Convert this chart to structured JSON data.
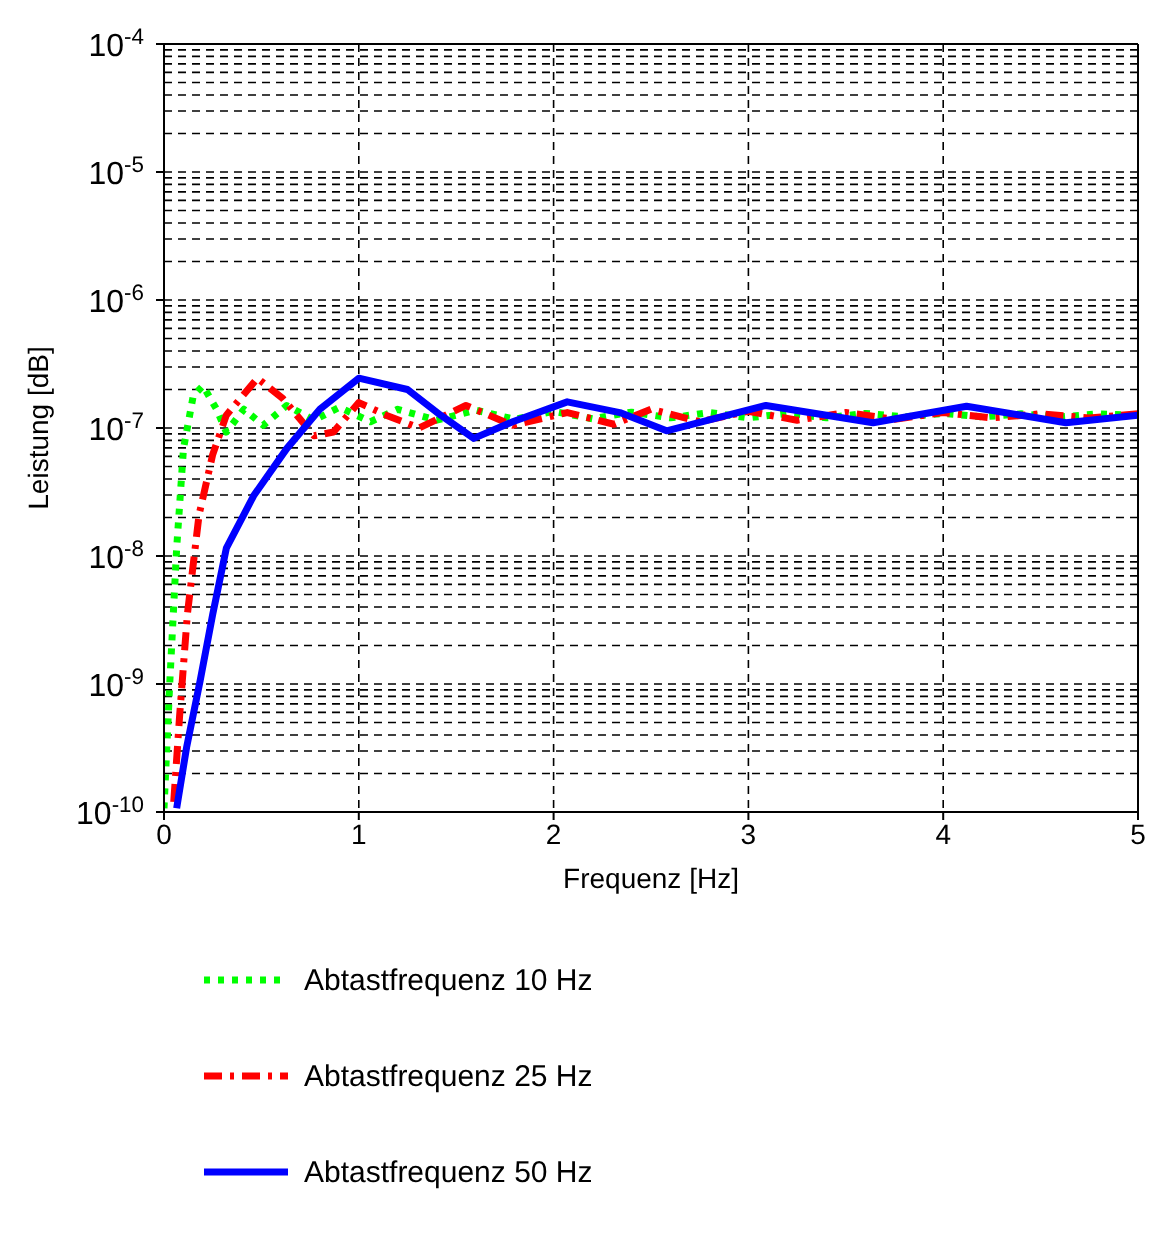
{
  "chart_data": {
    "type": "line",
    "xlabel": "Frequenz [Hz]",
    "ylabel": "Leistung [dB]",
    "log": "y",
    "grid": true,
    "legend": "bottom",
    "marker": "none",
    "xlim": [
      0,
      5
    ],
    "xticks": [
      0,
      1,
      2,
      3,
      4,
      5
    ],
    "ylim": [
      1e-10,
      0.0001
    ],
    "yticks": [
      {
        "value": 1e-10,
        "label": "10$^{-10}$"
      },
      {
        "value": 1e-09,
        "label": "10$^{-9}$"
      },
      {
        "value": 1e-08,
        "label": "10$^{-8}$"
      },
      {
        "value": 1e-07,
        "label": "10$^{-7}$"
      },
      {
        "value": 1e-06,
        "label": "10$^{-6}$"
      },
      {
        "value": 1e-05,
        "label": "10$^{-5}$"
      },
      {
        "value": 0.0001,
        "label": "10$^{-4}$"
      }
    ],
    "series": [
      {
        "name": "Abtastfrequenz 10 Hz",
        "color": "#00ff00",
        "line_style": "dotted",
        "x": [
          0.0,
          0.03,
          0.065,
          0.1,
          0.15,
          0.2,
          0.27,
          0.32,
          0.41,
          0.51,
          0.63,
          0.77,
          0.9,
          1.06,
          1.2,
          1.4,
          1.6,
          1.8,
          2.0,
          2.2,
          2.4,
          2.6,
          2.8,
          3.0,
          3.2,
          3.4,
          3.6,
          3.8,
          4.0,
          4.2,
          4.4,
          4.6,
          4.8,
          5.0
        ],
        "values": [
          1.07e-10,
          1.05e-09,
          1.15e-08,
          6.9e-08,
          1.78e-07,
          2.14e-07,
          1.4e-07,
          9.3e-08,
          1.4e-07,
          1.05e-07,
          1.5e-07,
          1.15e-07,
          1.45e-07,
          1.12e-07,
          1.4e-07,
          1.15e-07,
          1.38e-07,
          1.17e-07,
          1.35e-07,
          1.18e-07,
          1.33e-07,
          1.2e-07,
          1.32e-07,
          1.2e-07,
          1.3e-07,
          1.2e-07,
          1.3e-07,
          1.22e-07,
          1.3e-07,
          1.22e-07,
          1.29e-07,
          1.22e-07,
          1.29e-07,
          1.25e-07
        ]
      },
      {
        "name": "Abtastfrequenz 25 Hz",
        "color": "#ff0000",
        "line_style": "dashed",
        "x": [
          0.05,
          0.08,
          0.12,
          0.18,
          0.25,
          0.32,
          0.48,
          0.61,
          0.77,
          0.87,
          1.0,
          1.14,
          1.31,
          1.55,
          1.79,
          2.07,
          2.31,
          2.5,
          2.75,
          3.0,
          3.25,
          3.5,
          3.75,
          4.0,
          4.25,
          4.5,
          4.75,
          5.0
        ],
        "values": [
          1.2e-10,
          5.6e-10,
          3.5e-09,
          2.1e-08,
          6.2e-08,
          1.26e-07,
          2.45e-07,
          1.7e-07,
          8.7e-08,
          9.3e-08,
          1.58e-07,
          1.26e-07,
          1e-07,
          1.5e-07,
          1.05e-07,
          1.32e-07,
          1.07e-07,
          1.4e-07,
          1.12e-07,
          1.35e-07,
          1.15e-07,
          1.32e-07,
          1.17e-07,
          1.32e-07,
          1.2e-07,
          1.29e-07,
          1.2e-07,
          1.29e-07
        ]
      },
      {
        "name": "Abtastfrequenz 50 Hz",
        "color": "#0000ff",
        "line_style": "solid",
        "x": [
          0.065,
          0.116,
          0.185,
          0.25,
          0.32,
          0.46,
          0.63,
          0.8,
          1.0,
          1.25,
          1.42,
          1.59,
          1.79,
          2.07,
          2.34,
          2.58,
          3.09,
          3.64,
          4.12,
          4.63,
          5.0
        ],
        "values": [
          1.07e-10,
          3.2e-10,
          1.05e-09,
          3.5e-09,
          1.15e-08,
          2.95e-08,
          6.9e-08,
          1.4e-07,
          2.45e-07,
          2e-07,
          1.26e-07,
          8.3e-08,
          1.12e-07,
          1.6e-07,
          1.32e-07,
          9.5e-08,
          1.5e-07,
          1.1e-07,
          1.48e-07,
          1.1e-07,
          1.26e-07
        ]
      }
    ]
  }
}
